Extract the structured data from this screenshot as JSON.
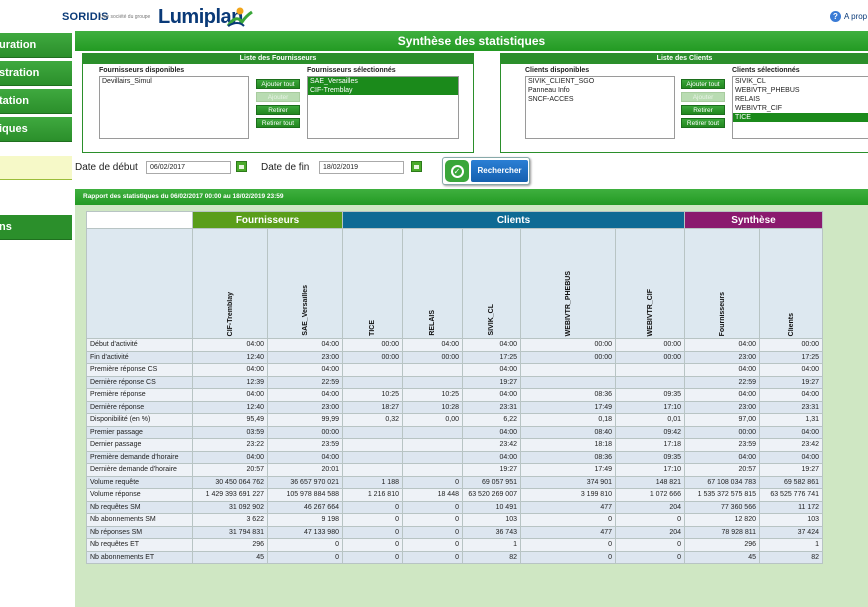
{
  "header": {
    "brand_soridis": "SORIDIS",
    "brand_tagline": "Une société du groupe",
    "brand_lumiplan": "Lumiplan",
    "help_label": "A prop"
  },
  "sidebar": {
    "items": [
      {
        "label": "uration"
      },
      {
        "label": "stration"
      },
      {
        "label": "tation"
      },
      {
        "label": "iques"
      },
      {
        "label": "ns"
      }
    ]
  },
  "main": {
    "title": "Synthèse des statistiques",
    "fournisseurs": {
      "panel_title": "Liste des Fournisseurs",
      "available_label": "Fournisseurs disponibles",
      "available": [
        "Devillairs_Simul"
      ],
      "selected_label": "Fournisseurs sélectionnés",
      "selected": [
        "SAE_Versailles",
        "CIF-Tremblay"
      ],
      "btn_add_all": "Ajouter tout",
      "btn_add": "Ajouter",
      "btn_remove": "Retirer",
      "btn_remove_all": "Retirer tout"
    },
    "clients": {
      "panel_title": "Liste des Clients",
      "available_label": "Clients disponibles",
      "available": [
        "SIVIK_CLIENT_SGO",
        "Panneau Info",
        "SNCF-ACCES"
      ],
      "selected_label": "Clients sélectionnés",
      "selected": [
        "SIVIK_CL",
        "WEBIVTR_PHEBUS",
        "RELAIS",
        "WEBIVTR_CIF",
        "TICE"
      ],
      "btn_add_all": "Ajouter tout",
      "btn_add": "Ajouter",
      "btn_remove": "Retirer",
      "btn_remove_all": "Retirer tout"
    },
    "dates": {
      "start_label": "Date de début",
      "start_value": "06/02/2017",
      "end_label": "Date de fin",
      "end_value": "18/02/2019",
      "search_label": "Rechercher"
    },
    "report_title": "Rapport des statistiques du 06/02/2017 00:00 au 18/02/2019 23:59"
  },
  "table": {
    "groups": {
      "fournisseurs": "Fournisseurs",
      "clients": "Clients",
      "synthese": "Synthèse"
    },
    "columns": [
      "CIF-Tremblay",
      "SAE_Versailles",
      "TICE",
      "RELAIS",
      "SIVIK_CL",
      "WEBIVTR_PHEBUS",
      "WEBIVTR_CIF",
      "Fournisseurs",
      "Clients"
    ],
    "rows": [
      {
        "label": "Début d'activité",
        "values": [
          "04:00",
          "04:00",
          "00:00",
          "04:00",
          "04:00",
          "00:00",
          "00:00",
          "04:00",
          "00:00"
        ]
      },
      {
        "label": "Fin d'activité",
        "values": [
          "12:40",
          "23:00",
          "00:00",
          "00:00",
          "17:25",
          "00:00",
          "00:00",
          "23:00",
          "17:25"
        ]
      },
      {
        "label": "Première réponse CS",
        "values": [
          "04:00",
          "04:00",
          "",
          "",
          "04:00",
          "",
          "",
          "04:00",
          "04:00"
        ]
      },
      {
        "label": "Dernière réponse CS",
        "values": [
          "12:39",
          "22:59",
          "",
          "",
          "19:27",
          "",
          "",
          "22:59",
          "19:27"
        ]
      },
      {
        "label": "Première réponse",
        "values": [
          "04:00",
          "04:00",
          "10:25",
          "10:25",
          "04:00",
          "08:36",
          "09:35",
          "04:00",
          "04:00"
        ]
      },
      {
        "label": "Dernière réponse",
        "values": [
          "12:40",
          "23:00",
          "18:27",
          "10:28",
          "23:31",
          "17:49",
          "17:10",
          "23:00",
          "23:31"
        ]
      },
      {
        "label": "Disponibilité (en %)",
        "values": [
          "95,49",
          "99,99",
          "0,32",
          "0,00",
          "6,22",
          "0,18",
          "0,01",
          "97,00",
          "1,31"
        ]
      },
      {
        "label": "Premier passage",
        "values": [
          "03:59",
          "00:00",
          "",
          "",
          "04:00",
          "08:40",
          "09:42",
          "00:00",
          "04:00"
        ]
      },
      {
        "label": "Dernier passage",
        "values": [
          "23:22",
          "23:59",
          "",
          "",
          "23:42",
          "18:18",
          "17:18",
          "23:59",
          "23:42"
        ]
      },
      {
        "label": "Première demande d'horaire",
        "values": [
          "04:00",
          "04:00",
          "",
          "",
          "04:00",
          "08:36",
          "09:35",
          "04:00",
          "04:00"
        ]
      },
      {
        "label": "Dernière demande d'horaire",
        "values": [
          "20:57",
          "20:01",
          "",
          "",
          "19:27",
          "17:49",
          "17:10",
          "20:57",
          "19:27"
        ]
      },
      {
        "label": "Volume requête",
        "values": [
          "30 450 064 762",
          "36 657 970 021",
          "1 188",
          "0",
          "69 057 951",
          "374 901",
          "148 821",
          "67 108 034 783",
          "69 582 861"
        ]
      },
      {
        "label": "Volume réponse",
        "values": [
          "1 429 393 691 227",
          "105 978 884 588",
          "1 216 810",
          "18 448",
          "63 520 269 007",
          "3 199 810",
          "1 072 666",
          "1 535 372 575 815",
          "63 525 776 741"
        ]
      },
      {
        "label": "Nb requêtes SM",
        "values": [
          "31 092 902",
          "46 267 664",
          "0",
          "0",
          "10 491",
          "477",
          "204",
          "77 360 566",
          "11 172"
        ]
      },
      {
        "label": "Nb abonnements SM",
        "values": [
          "3 622",
          "9 198",
          "0",
          "0",
          "103",
          "0",
          "0",
          "12 820",
          "103"
        ]
      },
      {
        "label": "Nb réponses SM",
        "values": [
          "31 794 831",
          "47 133 980",
          "0",
          "0",
          "36 743",
          "477",
          "204",
          "78 928 811",
          "37 424"
        ]
      },
      {
        "label": "Nb requêtes ET",
        "values": [
          "296",
          "0",
          "0",
          "0",
          "1",
          "0",
          "0",
          "296",
          "1"
        ]
      },
      {
        "label": "Nb abonnements ET",
        "values": [
          "45",
          "0",
          "0",
          "0",
          "82",
          "0",
          "0",
          "45",
          "82"
        ]
      }
    ]
  }
}
